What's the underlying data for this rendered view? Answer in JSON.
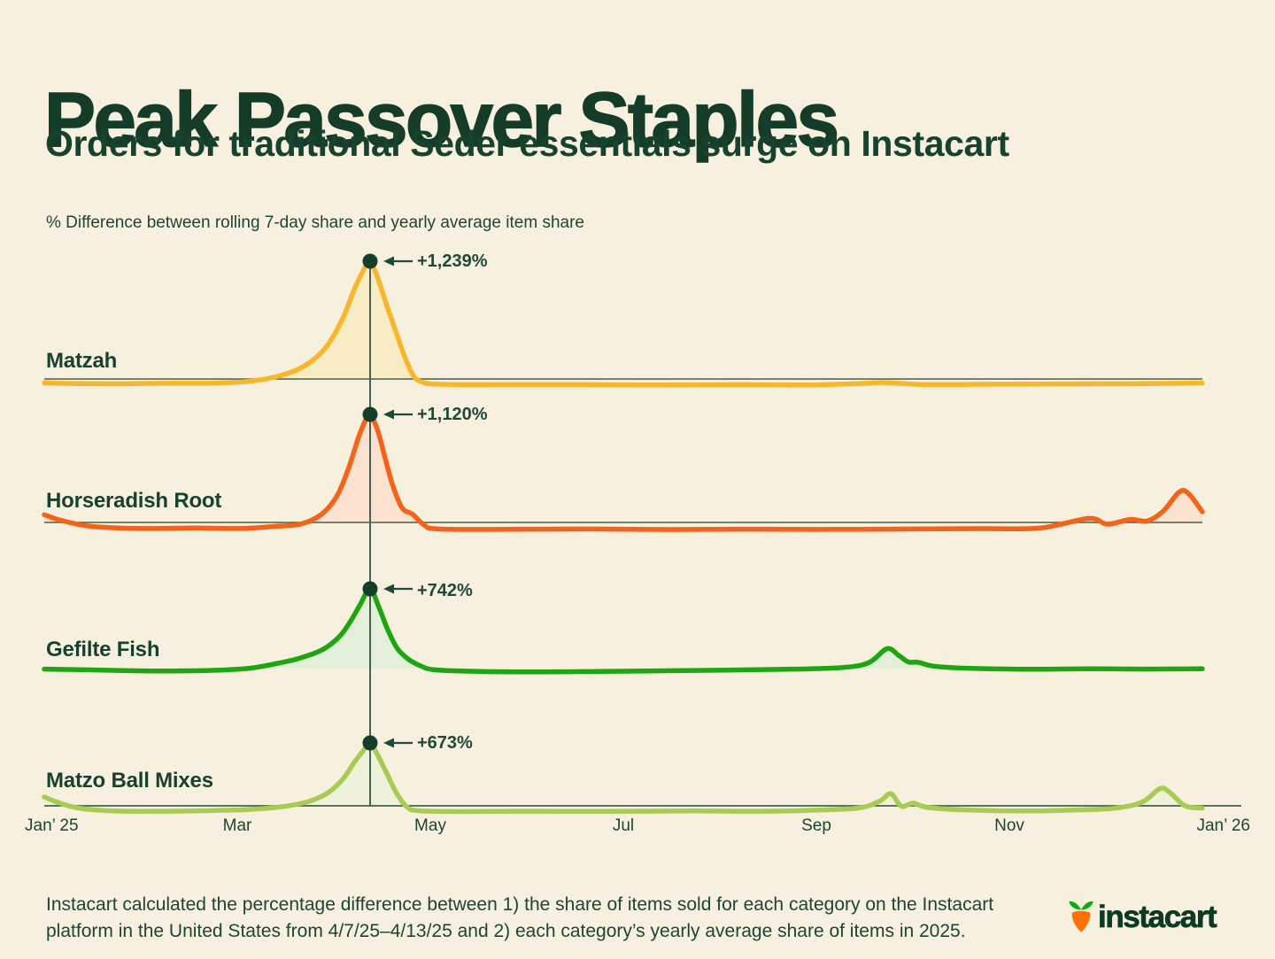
{
  "page": {
    "background": "#F8F0DF",
    "ink": "#17432E",
    "grid_line_color": "#44604F"
  },
  "header": {
    "title": "Peak Passover Staples",
    "subtitle": "Orders for traditional Seder essentials surge on Instacart"
  },
  "chart_data": {
    "type": "area",
    "axis_note": "% Difference between rolling 7-day share and yearly average item share",
    "x_tick_labels": [
      "Jan’ 25",
      "Mar",
      "May",
      "Jul",
      "Sep",
      "Nov",
      "Jan’ 26"
    ],
    "legend_position": "left-of-baseline",
    "grid": "baseline-only",
    "peak_t": 0.2813,
    "annotation_color": "#1F4936",
    "dot_color": "#153D2A",
    "series": [
      {
        "id": "matzah",
        "name": "Matzah",
        "peak_label": "+1,239%",
        "peak_value": 1239,
        "line_color": "#F8B62C",
        "fill_color": "#F9ECC5",
        "baseline_visible": true,
        "points": [
          [
            0.0,
            -40
          ],
          [
            0.03,
            -48
          ],
          [
            0.07,
            -50
          ],
          [
            0.11,
            -45
          ],
          [
            0.15,
            -42
          ],
          [
            0.18,
            -20
          ],
          [
            0.205,
            40
          ],
          [
            0.225,
            140
          ],
          [
            0.243,
            330
          ],
          [
            0.257,
            620
          ],
          [
            0.268,
            950
          ],
          [
            0.275,
            1130
          ],
          [
            0.2813,
            1239
          ],
          [
            0.288,
            1060
          ],
          [
            0.295,
            800
          ],
          [
            0.303,
            520
          ],
          [
            0.311,
            240
          ],
          [
            0.319,
            30
          ],
          [
            0.327,
            -35
          ],
          [
            0.34,
            -55
          ],
          [
            0.38,
            -60
          ],
          [
            0.45,
            -58
          ],
          [
            0.52,
            -62
          ],
          [
            0.6,
            -60
          ],
          [
            0.66,
            -62
          ],
          [
            0.7,
            -50
          ],
          [
            0.726,
            -38
          ],
          [
            0.76,
            -58
          ],
          [
            0.82,
            -55
          ],
          [
            0.88,
            -52
          ],
          [
            0.94,
            -50
          ],
          [
            1.0,
            -42
          ]
        ]
      },
      {
        "id": "horseradish-root",
        "name": "Horseradish Root",
        "peak_label": "+1,120%",
        "peak_value": 1120,
        "line_color": "#F3641A",
        "fill_color": "#FBE2D0",
        "baseline_visible": true,
        "points": [
          [
            0.0,
            80
          ],
          [
            0.015,
            20
          ],
          [
            0.04,
            -40
          ],
          [
            0.08,
            -62
          ],
          [
            0.13,
            -58
          ],
          [
            0.17,
            -62
          ],
          [
            0.2,
            -40
          ],
          [
            0.222,
            -15
          ],
          [
            0.24,
            90
          ],
          [
            0.253,
            280
          ],
          [
            0.263,
            570
          ],
          [
            0.271,
            870
          ],
          [
            0.277,
            1050
          ],
          [
            0.2813,
            1120
          ],
          [
            0.288,
            950
          ],
          [
            0.294,
            680
          ],
          [
            0.301,
            380
          ],
          [
            0.309,
            150
          ],
          [
            0.318,
            85
          ],
          [
            0.328,
            -25
          ],
          [
            0.34,
            -68
          ],
          [
            0.4,
            -72
          ],
          [
            0.47,
            -68
          ],
          [
            0.54,
            -73
          ],
          [
            0.61,
            -70
          ],
          [
            0.68,
            -72
          ],
          [
            0.75,
            -68
          ],
          [
            0.81,
            -64
          ],
          [
            0.86,
            -58
          ],
          [
            0.902,
            42
          ],
          [
            0.918,
            -18
          ],
          [
            0.938,
            32
          ],
          [
            0.952,
            15
          ],
          [
            0.966,
            115
          ],
          [
            0.98,
            315
          ],
          [
            0.988,
            300
          ],
          [
            1.0,
            110
          ]
        ]
      },
      {
        "id": "gefilte-fish",
        "name": "Gefilte Fish",
        "peak_label": "+742%",
        "peak_value": 742,
        "line_color": "#1FA512",
        "fill_color": "#E3EFD8",
        "baseline_visible": false,
        "points": [
          [
            0.0,
            -5
          ],
          [
            0.04,
            -12
          ],
          [
            0.09,
            -22
          ],
          [
            0.14,
            -18
          ],
          [
            0.175,
            0
          ],
          [
            0.2,
            45
          ],
          [
            0.22,
            95
          ],
          [
            0.24,
            175
          ],
          [
            0.255,
            300
          ],
          [
            0.265,
            450
          ],
          [
            0.273,
            600
          ],
          [
            0.2813,
            742
          ],
          [
            0.289,
            570
          ],
          [
            0.297,
            350
          ],
          [
            0.305,
            185
          ],
          [
            0.314,
            90
          ],
          [
            0.325,
            25
          ],
          [
            0.338,
            -12
          ],
          [
            0.38,
            -28
          ],
          [
            0.45,
            -30
          ],
          [
            0.52,
            -22
          ],
          [
            0.59,
            -15
          ],
          [
            0.65,
            -5
          ],
          [
            0.69,
            10
          ],
          [
            0.712,
            55
          ],
          [
            0.7278,
            185
          ],
          [
            0.738,
            120
          ],
          [
            0.746,
            62
          ],
          [
            0.755,
            58
          ],
          [
            0.768,
            22
          ],
          [
            0.8,
            2
          ],
          [
            0.85,
            -6
          ],
          [
            0.9,
            -2
          ],
          [
            0.95,
            -5
          ],
          [
            1.0,
            -2
          ]
        ]
      },
      {
        "id": "matzo-ball-mixes",
        "name": "Matzo Ball Mixes",
        "peak_label": "+673%",
        "peak_value": 673,
        "line_color": "#A7CB53",
        "fill_color": "#EFF2DB",
        "baseline_visible": false,
        "points": [
          [
            0.0,
            95
          ],
          [
            0.012,
            35
          ],
          [
            0.03,
            -25
          ],
          [
            0.06,
            -55
          ],
          [
            0.1,
            -58
          ],
          [
            0.14,
            -52
          ],
          [
            0.175,
            -40
          ],
          [
            0.205,
            -10
          ],
          [
            0.228,
            45
          ],
          [
            0.245,
            140
          ],
          [
            0.258,
            290
          ],
          [
            0.268,
            470
          ],
          [
            0.276,
            600
          ],
          [
            0.2813,
            673
          ],
          [
            0.288,
            540
          ],
          [
            0.296,
            340
          ],
          [
            0.304,
            140
          ],
          [
            0.313,
            -10
          ],
          [
            0.323,
            -52
          ],
          [
            0.36,
            -62
          ],
          [
            0.42,
            -58
          ],
          [
            0.49,
            -60
          ],
          [
            0.56,
            -55
          ],
          [
            0.62,
            -58
          ],
          [
            0.67,
            -45
          ],
          [
            0.705,
            -20
          ],
          [
            0.722,
            55
          ],
          [
            0.731,
            130
          ],
          [
            0.74,
            -5
          ],
          [
            0.75,
            28
          ],
          [
            0.762,
            -15
          ],
          [
            0.79,
            -42
          ],
          [
            0.84,
            -55
          ],
          [
            0.89,
            -45
          ],
          [
            0.925,
            -25
          ],
          [
            0.948,
            40
          ],
          [
            0.9635,
            185
          ],
          [
            0.972,
            140
          ],
          [
            0.985,
            0
          ],
          [
            1.0,
            -25
          ]
        ]
      }
    ]
  },
  "footer": {
    "note": "Instacart calculated the percentage difference between 1) the share of items sold for each category on the Instacart platform in the United States from 4/7/25–4/13/25 and 2) each category’s yearly average share of items in 2025.",
    "logo": {
      "text": "instacart",
      "carrot_color": "#FF7009",
      "leaf_color": "#0AAD0A",
      "text_color": "#0C3B24"
    }
  }
}
